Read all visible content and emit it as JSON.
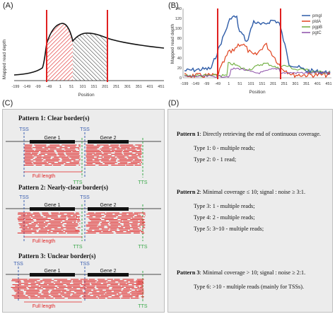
{
  "panels": {
    "a": {
      "letter": "(A)",
      "ylabel": "Mapped read depth",
      "xlabel": "Position",
      "xticks": [
        "-199",
        "-149",
        "-99",
        "-49",
        "1",
        "51",
        "101",
        "151",
        "201",
        "251",
        "301",
        "351",
        "401",
        "451"
      ]
    },
    "b": {
      "letter": "(B)",
      "ylabel": "Mapped read depth",
      "xlabel": "Position",
      "yticks": [
        "0",
        "20",
        "40",
        "60",
        "80",
        "100",
        "120",
        "140"
      ],
      "xticks": [
        "-199",
        "-149",
        "-99",
        "-49",
        "1",
        "51",
        "101",
        "151",
        "201",
        "251",
        "301",
        "351",
        "401",
        "451"
      ],
      "legend": [
        {
          "name": "pmgI",
          "color": "#2e5ca8"
        },
        {
          "name": "pldA",
          "color": "#e0431f"
        },
        {
          "name": "pgpB",
          "color": "#6fae3f"
        },
        {
          "name": "pgtC",
          "color": "#8c4fa8"
        }
      ]
    },
    "c": {
      "letter": "(C)",
      "patterns": [
        {
          "title": "Pattern 1: Clear border(s)",
          "gene1": "Gene 1",
          "gene2": "Gene 2",
          "tss1": "TSS",
          "tss2": "TSS",
          "tts1": "TTS",
          "tts2": "TTS",
          "full_length": "Full length"
        },
        {
          "title": "Pattern 2: Nearly-clear border(s)",
          "gene1": "Gene 1",
          "gene2": "Gene 2",
          "tss1": "TSS",
          "tss2": "TSS",
          "tts1": "TTS",
          "tts2": "TTS",
          "full_length": "Full length"
        },
        {
          "title": "Pattern 3: Unclear border(s)",
          "gene1": "Gene 1",
          "gene2": "Gene 2",
          "tss1": "TSS",
          "tss2": "TSS",
          "tts1": "TTS",
          "full_length": "Full length"
        }
      ]
    },
    "d": {
      "letter": "(D)",
      "p1_head": "Pattern 1",
      "p1_text": ": Directly retrieving  the end of continuous coverage.",
      "p1_types": [
        "Type 1: 0 - multiple reads;",
        "Type 2: 0 - 1 read;"
      ],
      "p2_head": "Pattern 2",
      "p2_text": ": Minimal coverage ≤ 10;  signal : noise ≥ 3:1.",
      "p2_types": [
        "Type 3: 1 - multiple reads;",
        "Type 4: 2 - multiple reads;",
        "Type 5: 3~10 - multiple reads;"
      ],
      "p3_head": "Pattern 3",
      "p3_text": ": Minimal coverage > 10;  signal : noise ≥ 2:1.",
      "p3_types": [
        "Type 6: >10 - multiple reads (mainly for TSSs)."
      ]
    }
  },
  "colors": {
    "red": "#e02020",
    "blue": "#3b5fb0",
    "green": "#3aa84a",
    "black": "#111111"
  }
}
